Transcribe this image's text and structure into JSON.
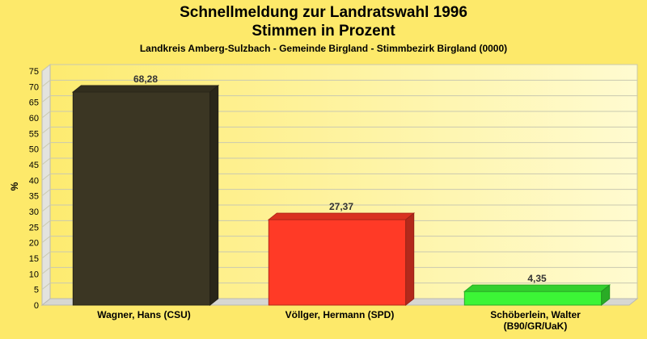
{
  "title_line_1": "Schnellmeldung zur Landratswahl 1996",
  "title_line_2": "Stimmen in Prozent",
  "subtitle": "Landkreis Amberg-Sulzbach - Gemeinde Birgland - Stimmbezirk Birgland (0000)",
  "chart_data": {
    "type": "bar",
    "title": "Schnellmeldung zur Landratswahl 1996 Stimmen in Prozent",
    "subtitle": "Landkreis Amberg-Sulzbach - Gemeinde Birgland - Stimmbezirk Birgland (0000)",
    "categories": [
      [
        "Wagner, Hans (CSU)"
      ],
      [
        "Völlger, Hermann (SPD)"
      ],
      [
        "Schöberlein, Walter",
        "(B90/GR/UaK)"
      ]
    ],
    "values": [
      68.28,
      27.37,
      4.35
    ],
    "value_labels": [
      "68,28",
      "27,37",
      "4,35"
    ],
    "colors": [
      "#3b3623",
      "#ff3a26",
      "#3cf536"
    ],
    "xlabel": "",
    "ylabel": "%",
    "ylim": [
      0,
      75
    ],
    "yticks": [
      0,
      5,
      10,
      15,
      20,
      25,
      30,
      35,
      40,
      45,
      50,
      55,
      60,
      65,
      70,
      75
    ],
    "grid": true,
    "legend": "none"
  }
}
